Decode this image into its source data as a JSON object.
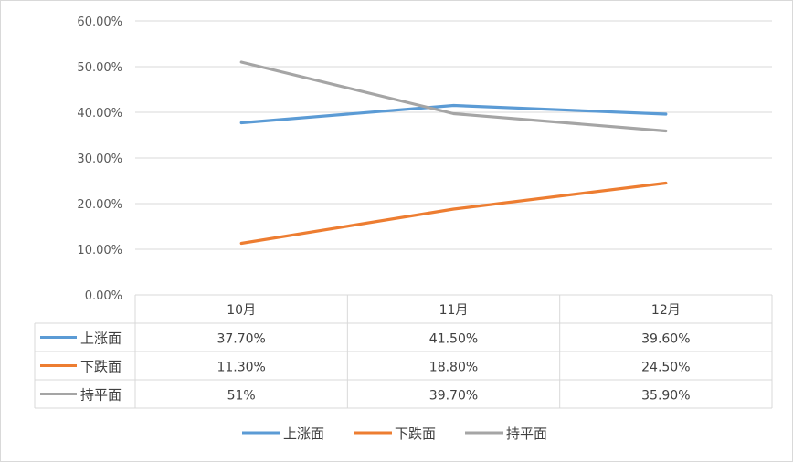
{
  "chart_data": {
    "type": "line",
    "categories": [
      "10月",
      "11月",
      "12月"
    ],
    "series": [
      {
        "name": "上涨面",
        "values": [
          37.7,
          41.5,
          39.6
        ],
        "labels": [
          "37.70%",
          "41.50%",
          "39.60%"
        ],
        "color": "#5B9BD5"
      },
      {
        "name": "下跌面",
        "values": [
          11.3,
          18.8,
          24.5
        ],
        "labels": [
          "11.30%",
          "18.80%",
          "24.50%"
        ],
        "color": "#ED7D31"
      },
      {
        "name": "持平面",
        "values": [
          51,
          39.7,
          35.9
        ],
        "labels": [
          "51%",
          "39.70%",
          "35.90%"
        ],
        "color": "#A5A5A5"
      }
    ],
    "y_ticks": [
      "0.00%",
      "10.00%",
      "20.00%",
      "30.00%",
      "40.00%",
      "50.00%",
      "60.00%"
    ],
    "ylim": [
      0,
      60
    ],
    "grid": true,
    "legend_position": "bottom",
    "data_table": true
  }
}
